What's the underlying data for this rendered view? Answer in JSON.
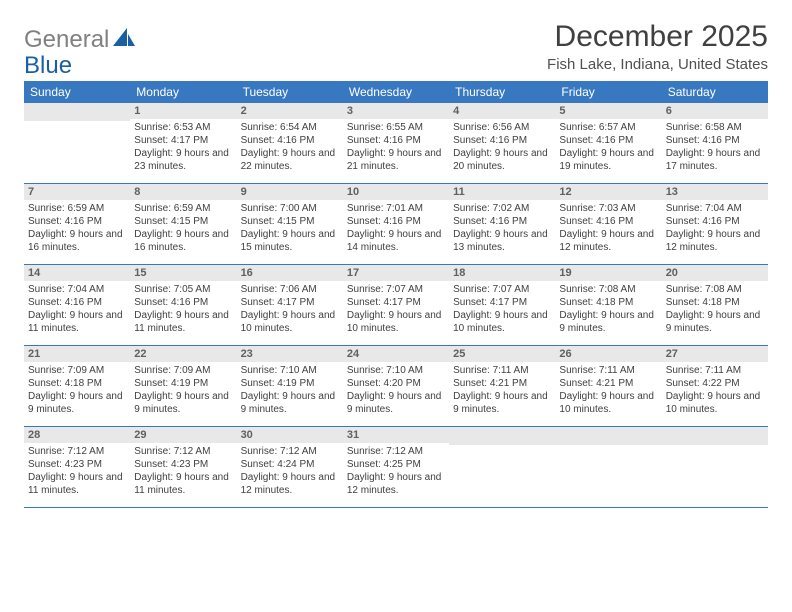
{
  "logo": {
    "gray": "General",
    "blue": "Blue"
  },
  "title": "December 2025",
  "location": "Fish Lake, Indiana, United States",
  "colors": {
    "header_bg": "#3878c0",
    "header_text": "#ffffff",
    "daynum_bg": "#e8e8e8",
    "body_text": "#404040",
    "rule": "#3878c0"
  },
  "days_of_week": [
    "Sunday",
    "Monday",
    "Tuesday",
    "Wednesday",
    "Thursday",
    "Friday",
    "Saturday"
  ],
  "weeks": [
    [
      null,
      {
        "n": "1",
        "sr": "6:53 AM",
        "ss": "4:17 PM",
        "dl": "9 hours and 23 minutes."
      },
      {
        "n": "2",
        "sr": "6:54 AM",
        "ss": "4:16 PM",
        "dl": "9 hours and 22 minutes."
      },
      {
        "n": "3",
        "sr": "6:55 AM",
        "ss": "4:16 PM",
        "dl": "9 hours and 21 minutes."
      },
      {
        "n": "4",
        "sr": "6:56 AM",
        "ss": "4:16 PM",
        "dl": "9 hours and 20 minutes."
      },
      {
        "n": "5",
        "sr": "6:57 AM",
        "ss": "4:16 PM",
        "dl": "9 hours and 19 minutes."
      },
      {
        "n": "6",
        "sr": "6:58 AM",
        "ss": "4:16 PM",
        "dl": "9 hours and 17 minutes."
      }
    ],
    [
      {
        "n": "7",
        "sr": "6:59 AM",
        "ss": "4:16 PM",
        "dl": "9 hours and 16 minutes."
      },
      {
        "n": "8",
        "sr": "6:59 AM",
        "ss": "4:15 PM",
        "dl": "9 hours and 16 minutes."
      },
      {
        "n": "9",
        "sr": "7:00 AM",
        "ss": "4:15 PM",
        "dl": "9 hours and 15 minutes."
      },
      {
        "n": "10",
        "sr": "7:01 AM",
        "ss": "4:16 PM",
        "dl": "9 hours and 14 minutes."
      },
      {
        "n": "11",
        "sr": "7:02 AM",
        "ss": "4:16 PM",
        "dl": "9 hours and 13 minutes."
      },
      {
        "n": "12",
        "sr": "7:03 AM",
        "ss": "4:16 PM",
        "dl": "9 hours and 12 minutes."
      },
      {
        "n": "13",
        "sr": "7:04 AM",
        "ss": "4:16 PM",
        "dl": "9 hours and 12 minutes."
      }
    ],
    [
      {
        "n": "14",
        "sr": "7:04 AM",
        "ss": "4:16 PM",
        "dl": "9 hours and 11 minutes."
      },
      {
        "n": "15",
        "sr": "7:05 AM",
        "ss": "4:16 PM",
        "dl": "9 hours and 11 minutes."
      },
      {
        "n": "16",
        "sr": "7:06 AM",
        "ss": "4:17 PM",
        "dl": "9 hours and 10 minutes."
      },
      {
        "n": "17",
        "sr": "7:07 AM",
        "ss": "4:17 PM",
        "dl": "9 hours and 10 minutes."
      },
      {
        "n": "18",
        "sr": "7:07 AM",
        "ss": "4:17 PM",
        "dl": "9 hours and 10 minutes."
      },
      {
        "n": "19",
        "sr": "7:08 AM",
        "ss": "4:18 PM",
        "dl": "9 hours and 9 minutes."
      },
      {
        "n": "20",
        "sr": "7:08 AM",
        "ss": "4:18 PM",
        "dl": "9 hours and 9 minutes."
      }
    ],
    [
      {
        "n": "21",
        "sr": "7:09 AM",
        "ss": "4:18 PM",
        "dl": "9 hours and 9 minutes."
      },
      {
        "n": "22",
        "sr": "7:09 AM",
        "ss": "4:19 PM",
        "dl": "9 hours and 9 minutes."
      },
      {
        "n": "23",
        "sr": "7:10 AM",
        "ss": "4:19 PM",
        "dl": "9 hours and 9 minutes."
      },
      {
        "n": "24",
        "sr": "7:10 AM",
        "ss": "4:20 PM",
        "dl": "9 hours and 9 minutes."
      },
      {
        "n": "25",
        "sr": "7:11 AM",
        "ss": "4:21 PM",
        "dl": "9 hours and 9 minutes."
      },
      {
        "n": "26",
        "sr": "7:11 AM",
        "ss": "4:21 PM",
        "dl": "9 hours and 10 minutes."
      },
      {
        "n": "27",
        "sr": "7:11 AM",
        "ss": "4:22 PM",
        "dl": "9 hours and 10 minutes."
      }
    ],
    [
      {
        "n": "28",
        "sr": "7:12 AM",
        "ss": "4:23 PM",
        "dl": "9 hours and 11 minutes."
      },
      {
        "n": "29",
        "sr": "7:12 AM",
        "ss": "4:23 PM",
        "dl": "9 hours and 11 minutes."
      },
      {
        "n": "30",
        "sr": "7:12 AM",
        "ss": "4:24 PM",
        "dl": "9 hours and 12 minutes."
      },
      {
        "n": "31",
        "sr": "7:12 AM",
        "ss": "4:25 PM",
        "dl": "9 hours and 12 minutes."
      },
      null,
      null,
      null
    ]
  ]
}
